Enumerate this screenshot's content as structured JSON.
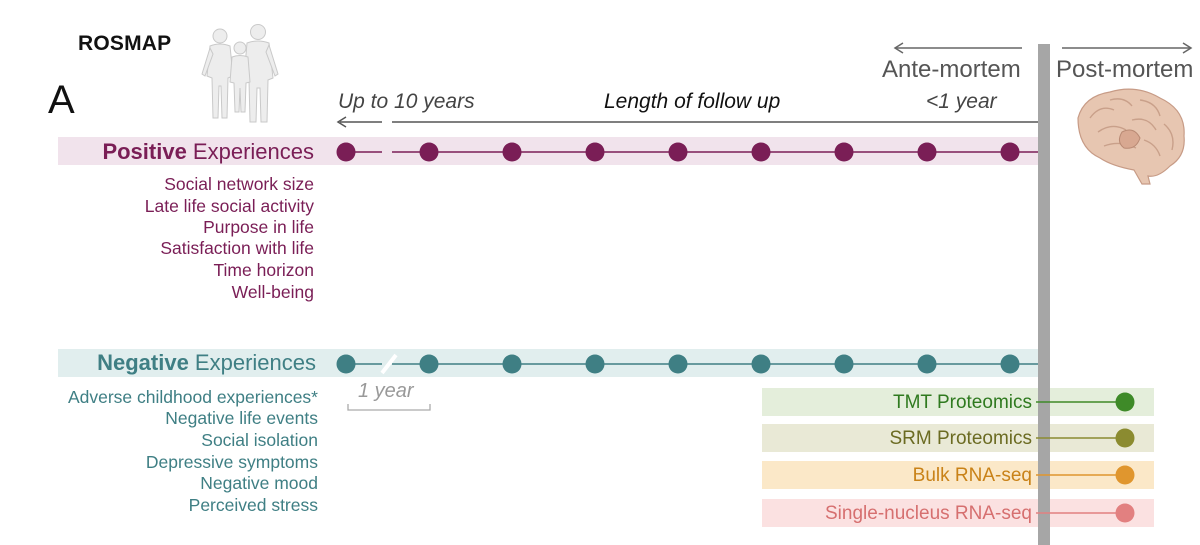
{
  "study_name": "ROSMAP",
  "panel_letter": "A",
  "timeline": {
    "ante_mortem": "Ante-mortem",
    "post_mortem": "Post-mortem",
    "up_to": "Up to 10 years",
    "length": "Length of follow up",
    "less_than_year": "<1 year",
    "one_year": "1 year",
    "visits": 9
  },
  "positive": {
    "label_bold": "Positive",
    "label_rest": " Experiences",
    "color": "#7a1e56",
    "measures": [
      "Social network size",
      "Late life social activity",
      "Purpose in life",
      "Satisfaction with life",
      "Time horizon",
      "Well-being"
    ]
  },
  "negative": {
    "label_bold": "Negative",
    "label_rest": " Experiences",
    "color": "#3f7f84",
    "measures": [
      "Adverse childhood experiences*",
      "Negative life events",
      "Social isolation",
      "Depressive symptoms",
      "Negative mood",
      "Perceived stress"
    ]
  },
  "omics": [
    {
      "label": "TMT Proteomics",
      "text_color": "#2f7a1f",
      "bg": "#e4eedb",
      "dot": "#3e8a28"
    },
    {
      "label": "SRM Proteomics",
      "text_color": "#6b6b22",
      "bg": "#e9e9d6",
      "dot": "#8b8b30"
    },
    {
      "label": "Bulk RNA-seq",
      "text_color": "#c98218",
      "bg": "#fbe8c8",
      "dot": "#e0962e"
    },
    {
      "label": "Single-nucleus RNA-seq",
      "text_color": "#d66f6f",
      "bg": "#fbe1e1",
      "dot": "#e28080"
    }
  ],
  "icons": [
    "people-silhouette-icon",
    "brain-icon"
  ]
}
